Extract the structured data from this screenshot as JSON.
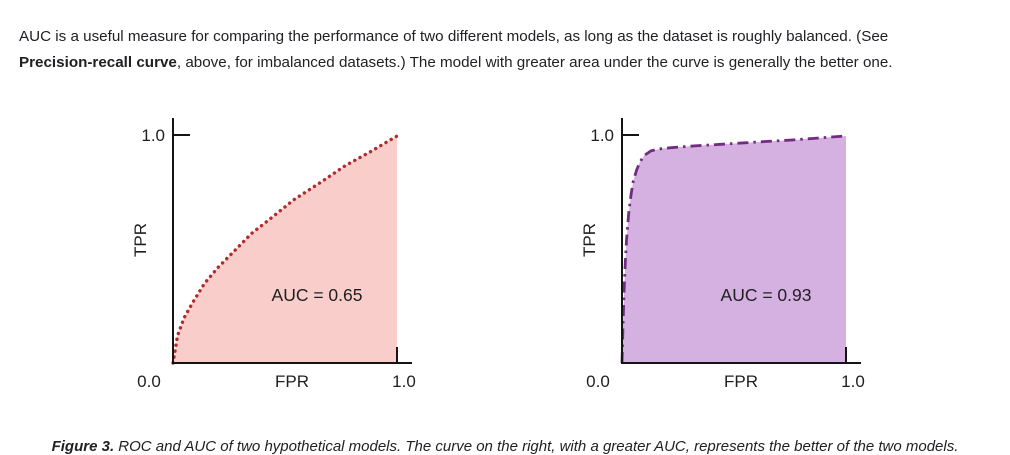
{
  "intro": {
    "line1": "AUC is a useful measure for comparing the performance of two different models, as long as the dataset is roughly balanced. (See",
    "bold_term": "Precision-recall curve",
    "line2_rest": ", above, for imbalanced datasets.) The model with greater area under the curve is generally the better one."
  },
  "caption": {
    "label": "Figure 3.",
    "text": " ROC and AUC of two hypothetical models. The curve on the right, with a greater AUC, represents the better of the two models."
  },
  "chart_data": [
    {
      "type": "area",
      "title": "",
      "xlabel": "FPR",
      "ylabel": "TPR",
      "xlim": [
        0,
        1
      ],
      "ylim": [
        0,
        1
      ],
      "x_tick_origin": "0.0",
      "x_tick_right": "1.0",
      "y_tick_top": "1.0",
      "annotation": "AUC = 0.65",
      "auc": 0.65,
      "grid": false,
      "line_style": "dotted",
      "line_color": "#b02c2c",
      "line_dash": "0.1 5.9",
      "line_width": 3.4,
      "fill_color": "#f9cdc9",
      "points": [
        [
          0,
          0
        ],
        [
          0.02,
          0.12
        ],
        [
          0.05,
          0.2
        ],
        [
          0.09,
          0.27
        ],
        [
          0.14,
          0.35
        ],
        [
          0.2,
          0.42
        ],
        [
          0.27,
          0.49
        ],
        [
          0.35,
          0.57
        ],
        [
          0.44,
          0.64
        ],
        [
          0.54,
          0.72
        ],
        [
          0.65,
          0.79
        ],
        [
          0.77,
          0.87
        ],
        [
          0.88,
          0.93
        ],
        [
          1,
          1
        ]
      ]
    },
    {
      "type": "area",
      "title": "",
      "xlabel": "FPR",
      "ylabel": "TPR",
      "xlim": [
        0,
        1
      ],
      "ylim": [
        0,
        1
      ],
      "x_tick_origin": "0.0",
      "x_tick_right": "1.0",
      "y_tick_top": "1.0",
      "annotation": "AUC = 0.93",
      "auc": 0.93,
      "grid": false,
      "line_style": "dashdot",
      "line_color": "#722b80",
      "line_dash": "11 5 2.5 5",
      "line_width": 2.8,
      "fill_color": "#d5b1e2",
      "points": [
        [
          0,
          0
        ],
        [
          0.005,
          0.18
        ],
        [
          0.01,
          0.33
        ],
        [
          0.015,
          0.45
        ],
        [
          0.02,
          0.54
        ],
        [
          0.03,
          0.66
        ],
        [
          0.04,
          0.74
        ],
        [
          0.05,
          0.8
        ],
        [
          0.065,
          0.85
        ],
        [
          0.08,
          0.885
        ],
        [
          0.1,
          0.915
        ],
        [
          0.13,
          0.935
        ],
        [
          0.18,
          0.945
        ],
        [
          0.25,
          0.951
        ],
        [
          0.35,
          0.958
        ],
        [
          0.45,
          0.964
        ],
        [
          0.55,
          0.97
        ],
        [
          0.65,
          0.976
        ],
        [
          0.75,
          0.982
        ],
        [
          0.85,
          0.989
        ],
        [
          0.93,
          0.995
        ],
        [
          1,
          1
        ]
      ]
    }
  ]
}
